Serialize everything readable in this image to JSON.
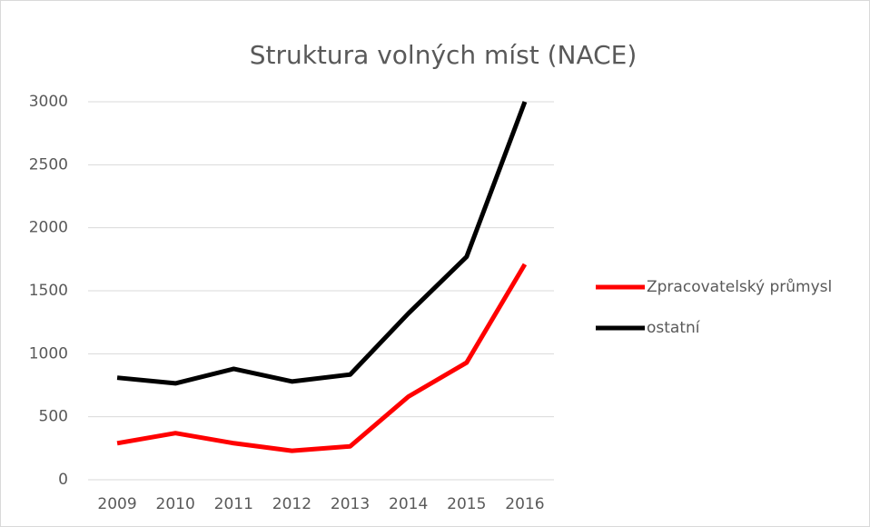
{
  "chart_data": {
    "type": "line",
    "title": "Struktura volných míst (NACE)",
    "categories": [
      "2009",
      "2010",
      "2011",
      "2012",
      "2013",
      "2014",
      "2015",
      "2016"
    ],
    "series": [
      {
        "name": "Zpracovatelský průmysl",
        "color": "#ff0000",
        "values": [
          290,
          370,
          290,
          230,
          265,
          660,
          930,
          1710
        ]
      },
      {
        "name": "ostatní",
        "color": "#000000",
        "values": [
          810,
          765,
          880,
          780,
          835,
          1320,
          1770,
          3000
        ]
      }
    ],
    "ylim": [
      0,
      3000
    ],
    "yticks": [
      0,
      500,
      1000,
      1500,
      2000,
      2500,
      3000
    ],
    "grid": true,
    "legend": "right"
  }
}
